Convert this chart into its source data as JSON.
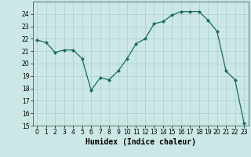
{
  "x": [
    0,
    1,
    2,
    3,
    4,
    5,
    6,
    7,
    8,
    9,
    10,
    11,
    12,
    13,
    14,
    15,
    16,
    17,
    18,
    19,
    20,
    21,
    22,
    23
  ],
  "y": [
    21.9,
    21.7,
    20.9,
    21.1,
    21.1,
    20.4,
    17.85,
    18.85,
    18.7,
    19.4,
    20.4,
    21.6,
    22.0,
    23.2,
    23.4,
    23.9,
    24.2,
    24.2,
    24.2,
    23.5,
    22.6,
    19.4,
    18.7,
    15.2
  ],
  "xlabel": "Humidex (Indice chaleur)",
  "ylim": [
    15,
    25
  ],
  "xlim": [
    -0.5,
    23.5
  ],
  "yticks": [
    15,
    16,
    17,
    18,
    19,
    20,
    21,
    22,
    23,
    24
  ],
  "xticks": [
    0,
    1,
    2,
    3,
    4,
    5,
    6,
    7,
    8,
    9,
    10,
    11,
    12,
    13,
    14,
    15,
    16,
    17,
    18,
    19,
    20,
    21,
    22,
    23
  ],
  "line_color": "#1a6b5a",
  "marker_color": "#1a6b5a",
  "bg_color": "#cce8e6",
  "grid_color": "#aacfcc",
  "tick_label_fontsize": 5.5,
  "xlabel_fontsize": 7.0
}
